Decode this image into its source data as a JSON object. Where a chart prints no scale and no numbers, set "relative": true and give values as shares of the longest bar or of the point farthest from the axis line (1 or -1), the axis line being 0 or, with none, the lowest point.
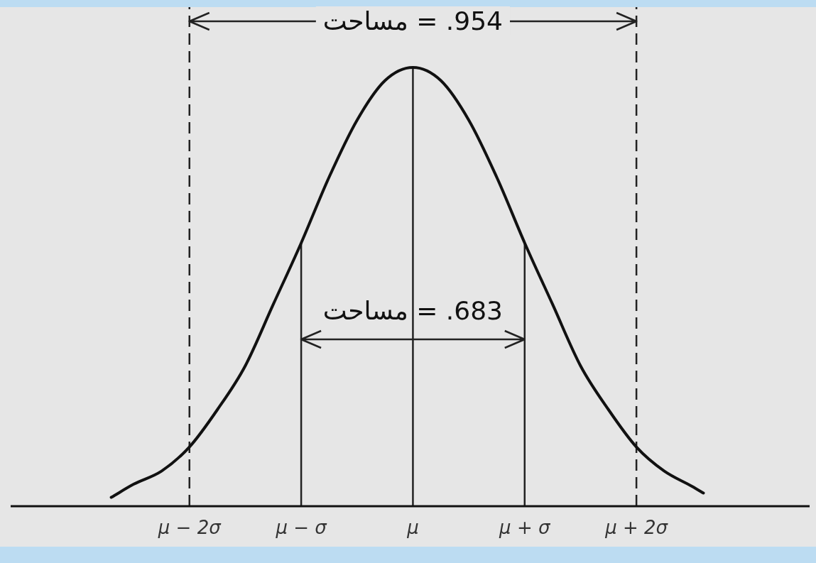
{
  "chart_data": {
    "type": "line",
    "relative": true,
    "x": [
      -2.7,
      -2.5,
      -2.25,
      -2,
      -1.75,
      -1.5,
      -1.25,
      -1,
      -0.75,
      -0.5,
      -0.25,
      0,
      0.25,
      0.5,
      0.75,
      1,
      1.25,
      1.5,
      1.75,
      2,
      2.25,
      2.5,
      2.6
    ],
    "series": [
      {
        "color": "#111111",
        "values": [
          0.02,
          0.05,
          0.08,
          0.135,
          0.22,
          0.32,
          0.46,
          0.6,
          0.75,
          0.88,
          0.97,
          1,
          0.97,
          0.88,
          0.75,
          0.6,
          0.46,
          0.32,
          0.22,
          0.135,
          0.08,
          0.045,
          0.03
        ]
      }
    ],
    "line_style": "solid",
    "xlim": [
      -3.6,
      3.55
    ],
    "xticks": [
      {
        "value": -2,
        "label": "μ − 2σ"
      },
      {
        "value": -1,
        "label": "μ − σ"
      },
      {
        "value": 0,
        "label": "μ"
      },
      {
        "value": 1,
        "label": "μ + σ"
      },
      {
        "value": 2,
        "label": "μ + 2σ"
      }
    ],
    "ref_lines": [
      {
        "axis": "x",
        "value": -2,
        "line_style": "dashed"
      },
      {
        "axis": "x",
        "value": -1,
        "line_style": "solid"
      },
      {
        "axis": "x",
        "value": 0,
        "line_style": "solid"
      },
      {
        "axis": "x",
        "value": 1,
        "line_style": "solid"
      },
      {
        "axis": "x",
        "value": 2,
        "line_style": "dashed"
      }
    ],
    "annotations": [
      "مساحت = .954",
      "مساحت = .683"
    ]
  }
}
